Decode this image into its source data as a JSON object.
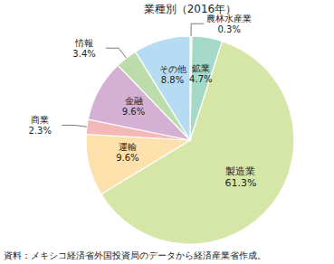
{
  "chart_data": {
    "type": "pie",
    "title": "業種別（2016年）",
    "categories": [
      "農林水産業",
      "鉱業",
      "製造業",
      "運輸",
      "商業",
      "金融",
      "情報",
      "その他"
    ],
    "values": [
      0.3,
      4.7,
      61.3,
      9.6,
      2.3,
      9.6,
      3.4,
      8.8
    ],
    "value_labels": [
      "0.3%",
      "4.7%",
      "61.3%",
      "9.6%",
      "2.3%",
      "9.6%",
      "3.4%",
      "8.8%"
    ],
    "colors": [
      "#e6ecc8",
      "#a3d9c6",
      "#d6e6a6",
      "#fde1ad",
      "#f4b9b6",
      "#d3b0d4",
      "#bcdcab",
      "#b5dcf2"
    ],
    "data_labels": true,
    "source": "資料：メキシコ経済省外国投資局のデータから経済産業省作成。"
  }
}
